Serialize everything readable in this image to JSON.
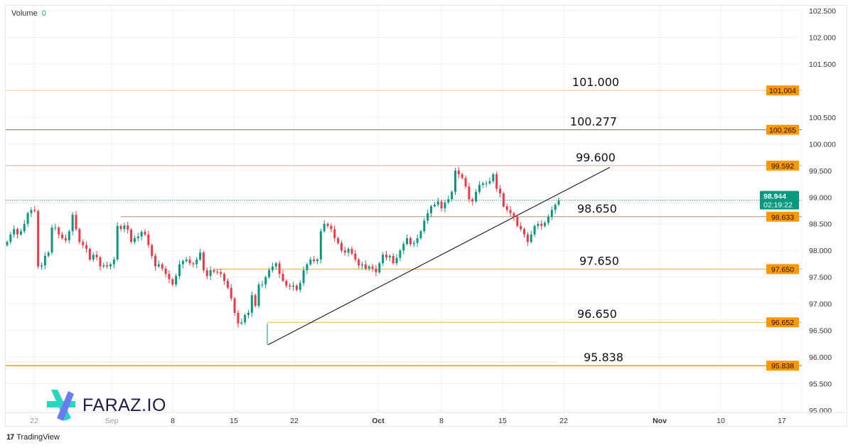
{
  "legend": {
    "volume_label": "Volume",
    "volume_value": "0"
  },
  "branding": {
    "watermark": "FARAZ.IO",
    "footer": "TradingView"
  },
  "colors": {
    "up": "#089981",
    "down": "#f23645",
    "label_bg": "#ff9800",
    "last_price_bg": "#089981",
    "trendline": "#000000"
  },
  "chart_data": {
    "type": "candlestick",
    "title": "",
    "y_axis": {
      "range": [
        95.0,
        102.5
      ],
      "ticks": [
        "102.500",
        "102.000",
        "101.500",
        "100.500",
        "100.000",
        "99.500",
        "99.000",
        "98.500",
        "98.000",
        "97.500",
        "97.000",
        "96.500",
        "96.000",
        "95.500",
        "95.000"
      ],
      "tick_values": [
        102.5,
        102.0,
        101.5,
        100.5,
        100.0,
        99.5,
        99.0,
        98.5,
        98.0,
        97.5,
        97.0,
        96.5,
        96.0,
        95.5,
        95.0
      ]
    },
    "x_axis": {
      "tick_labels": [
        "22",
        "Sep",
        "8",
        "15",
        "22",
        "Oct",
        "8",
        "15",
        "22",
        "Nov",
        "10",
        "17"
      ]
    },
    "closes": [
      98.16,
      98.3,
      98.4,
      98.3,
      98.36,
      98.5,
      98.7,
      98.76,
      98.74,
      97.7,
      97.72,
      97.9,
      97.96,
      98.43,
      98.43,
      98.3,
      98.23,
      98.19,
      98.36,
      98.67,
      98.4,
      98.16,
      98.1,
      98.03,
      97.83,
      97.92,
      97.87,
      97.7,
      97.72,
      97.7,
      97.74,
      97.83,
      98.46,
      98.4,
      98.47,
      98.39,
      98.16,
      98.23,
      98.26,
      98.35,
      98.3,
      98.1,
      97.9,
      97.7,
      97.74,
      97.66,
      97.56,
      97.46,
      97.36,
      97.52,
      97.74,
      97.8,
      97.83,
      97.76,
      97.74,
      97.83,
      97.96,
      97.63,
      97.52,
      97.63,
      97.6,
      97.59,
      97.56,
      97.43,
      97.3,
      97.1,
      96.83,
      96.63,
      96.65,
      96.79,
      96.83,
      97.16,
      96.96,
      97.36,
      97.36,
      97.5,
      97.63,
      97.7,
      97.76,
      97.56,
      97.43,
      97.34,
      97.32,
      97.34,
      97.26,
      97.39,
      97.63,
      97.74,
      97.83,
      97.8,
      97.83,
      98.36,
      98.5,
      98.46,
      98.4,
      98.23,
      98.14,
      98.0,
      97.96,
      98.03,
      97.94,
      97.83,
      97.72,
      97.74,
      97.66,
      97.7,
      97.66,
      97.59,
      97.76,
      97.92,
      97.87,
      97.9,
      97.76,
      97.86,
      98.0,
      98.12,
      98.23,
      98.12,
      98.14,
      98.23,
      98.36,
      98.56,
      98.7,
      98.83,
      98.86,
      98.92,
      98.79,
      98.9,
      98.96,
      99.1,
      99.5,
      99.43,
      99.36,
      99.2,
      98.96,
      98.92,
      99.1,
      99.23,
      99.26,
      99.26,
      99.3,
      99.43,
      99.16,
      99.07,
      98.83,
      98.76,
      98.7,
      98.63,
      98.46,
      98.4,
      98.3,
      98.16,
      98.3,
      98.46,
      98.5,
      98.46,
      98.52,
      98.63,
      98.76,
      98.86,
      98.94
    ],
    "last_price": {
      "value": "98.944",
      "countdown": "02:19:22",
      "price": 98.944
    },
    "levels": [
      {
        "price": 101.004,
        "axis_label": "101.004",
        "annotation": "101.000",
        "color": "#f8c48e"
      },
      {
        "price": 100.265,
        "axis_label": "100.265",
        "annotation": "100.277",
        "color": "#8a7762"
      },
      {
        "price": 99.592,
        "axis_label": "99.592",
        "annotation": "99.600",
        "color": "#c8b298"
      },
      {
        "price": 98.633,
        "axis_label": "98.633",
        "annotation": "98.650",
        "color": "#b09072"
      },
      {
        "price": 97.65,
        "axis_label": "97.650",
        "annotation": "97.650",
        "color": "#f5a83a"
      },
      {
        "price": 96.652,
        "axis_label": "96.652",
        "annotation": "96.650",
        "color": "#f5b04a"
      },
      {
        "price": 95.838,
        "axis_label": "95.838",
        "annotation": "95.838",
        "color": "#f59a00"
      }
    ],
    "trendline": {
      "from_price": 96.23,
      "to_price": 99.56
    }
  }
}
